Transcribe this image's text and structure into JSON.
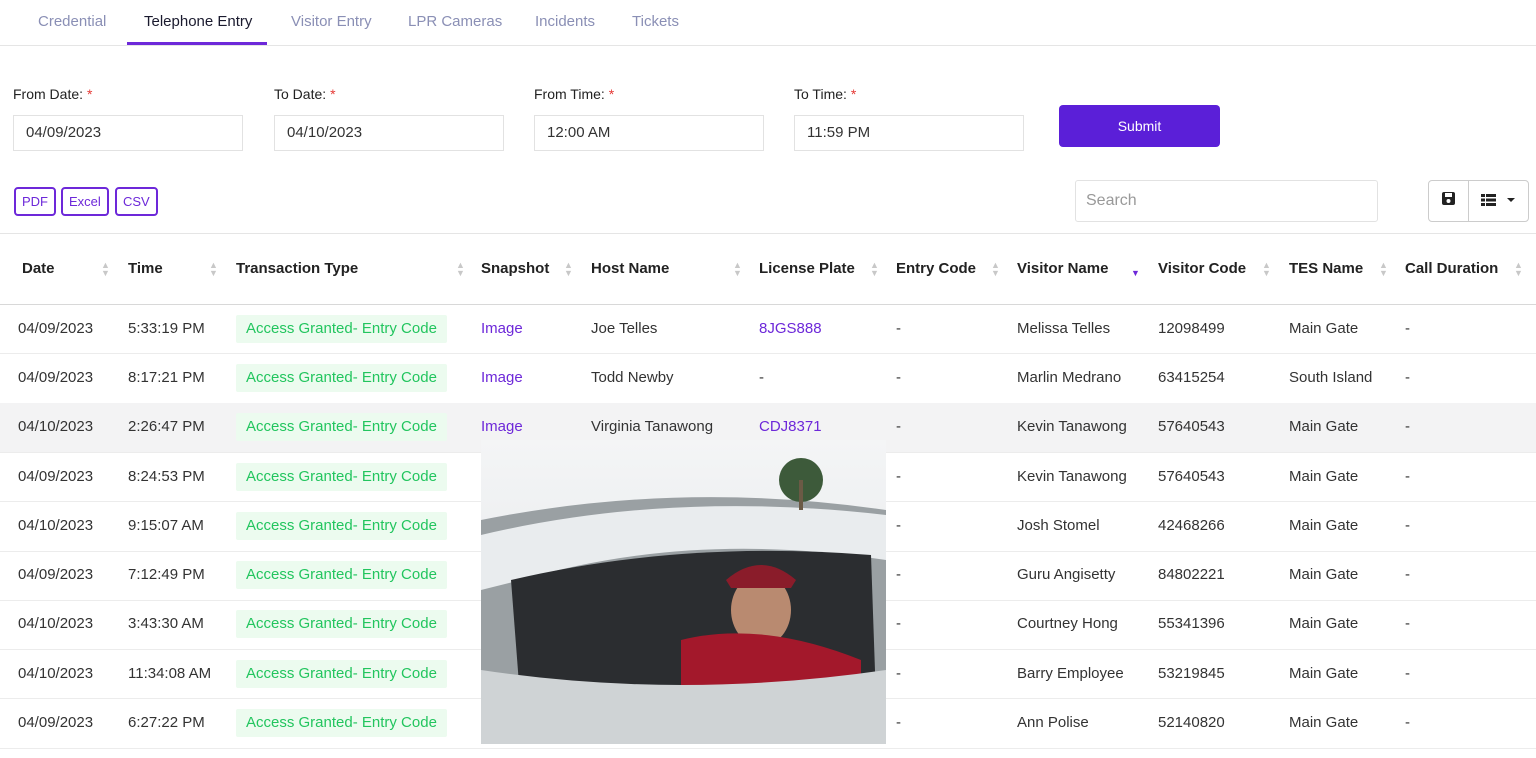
{
  "tabs": [
    "Credential",
    "Telephone Entry",
    "Visitor Entry",
    "LPR Cameras",
    "Incidents",
    "Tickets"
  ],
  "active_tab": 1,
  "filters": [
    {
      "label": "From Date:",
      "value": "04/09/2023"
    },
    {
      "label": "To Date:",
      "value": "04/10/2023"
    },
    {
      "label": "From Time:",
      "value": "12:00 AM"
    },
    {
      "label": "To Time:",
      "value": "11:59 PM"
    }
  ],
  "required_mark": "*",
  "submit": "Submit",
  "exports": [
    "PDF",
    "Excel",
    "CSV"
  ],
  "search_placeholder": "Search",
  "table": {
    "columns": [
      "Date",
      "Time",
      "Transaction Type",
      "Snapshot",
      "Host Name",
      "License Plate",
      "Entry Code",
      "Visitor Name",
      "Visitor Code",
      "TES Name",
      "Call Duration"
    ],
    "sorted_column": 7,
    "rows": [
      {
        "0": "04/09/2023",
        "1": "5:33:19 PM",
        "2": "Access Granted- Entry Code",
        "3": "Image",
        "4": "Joe Telles",
        "5": "8JGS888",
        "6": "-",
        "7": "Melissa Telles",
        "8": "12098499",
        "9": "Main Gate",
        "10": "-"
      },
      {
        "0": "04/09/2023",
        "1": "8:17:21 PM",
        "2": "Access Granted- Entry Code",
        "3": "Image",
        "4": "Todd Newby",
        "5": "-",
        "6": "-",
        "7": "Marlin Medrano",
        "8": "63415254",
        "9": "South Island",
        "10": "-"
      },
      {
        "0": "04/10/2023",
        "1": "2:26:47 PM",
        "2": "Access Granted- Entry Code",
        "3": "Image",
        "4": "Virginia Tanawong",
        "5": "CDJ8371",
        "6": "-",
        "7": "Kevin Tanawong",
        "8": "57640543",
        "9": "Main Gate",
        "10": "-"
      },
      {
        "0": "04/09/2023",
        "1": "8:24:53 PM",
        "2": "Access Granted- Entry Code",
        "6": "-",
        "7": "Kevin Tanawong",
        "8": "57640543",
        "9": "Main Gate",
        "10": "-"
      },
      {
        "0": "04/10/2023",
        "1": "9:15:07 AM",
        "2": "Access Granted- Entry Code",
        "6": "-",
        "7": "Josh Stomel",
        "8": "42468266",
        "9": "Main Gate",
        "10": "-"
      },
      {
        "0": "04/09/2023",
        "1": "7:12:49 PM",
        "2": "Access Granted- Entry Code",
        "6": "-",
        "7": "Guru Angisetty",
        "8": "84802221",
        "9": "Main Gate",
        "10": "-"
      },
      {
        "0": "04/10/2023",
        "1": "3:43:30 AM",
        "2": "Access Granted- Entry Code",
        "6": "-",
        "7": "Courtney Hong",
        "8": "55341396",
        "9": "Main Gate",
        "10": "-"
      },
      {
        "0": "04/10/2023",
        "1": "11:34:08 AM",
        "2": "Access Granted- Entry Code",
        "6": "-",
        "7": "Barry Employee",
        "8": "53219845",
        "9": "Main Gate",
        "10": "-"
      },
      {
        "0": "04/09/2023",
        "1": "6:27:22 PM",
        "2": "Access Granted- Entry Code",
        "6": "-",
        "7": "Ann Polise",
        "8": "52140820",
        "9": "Main Gate",
        "10": "-"
      }
    ]
  }
}
